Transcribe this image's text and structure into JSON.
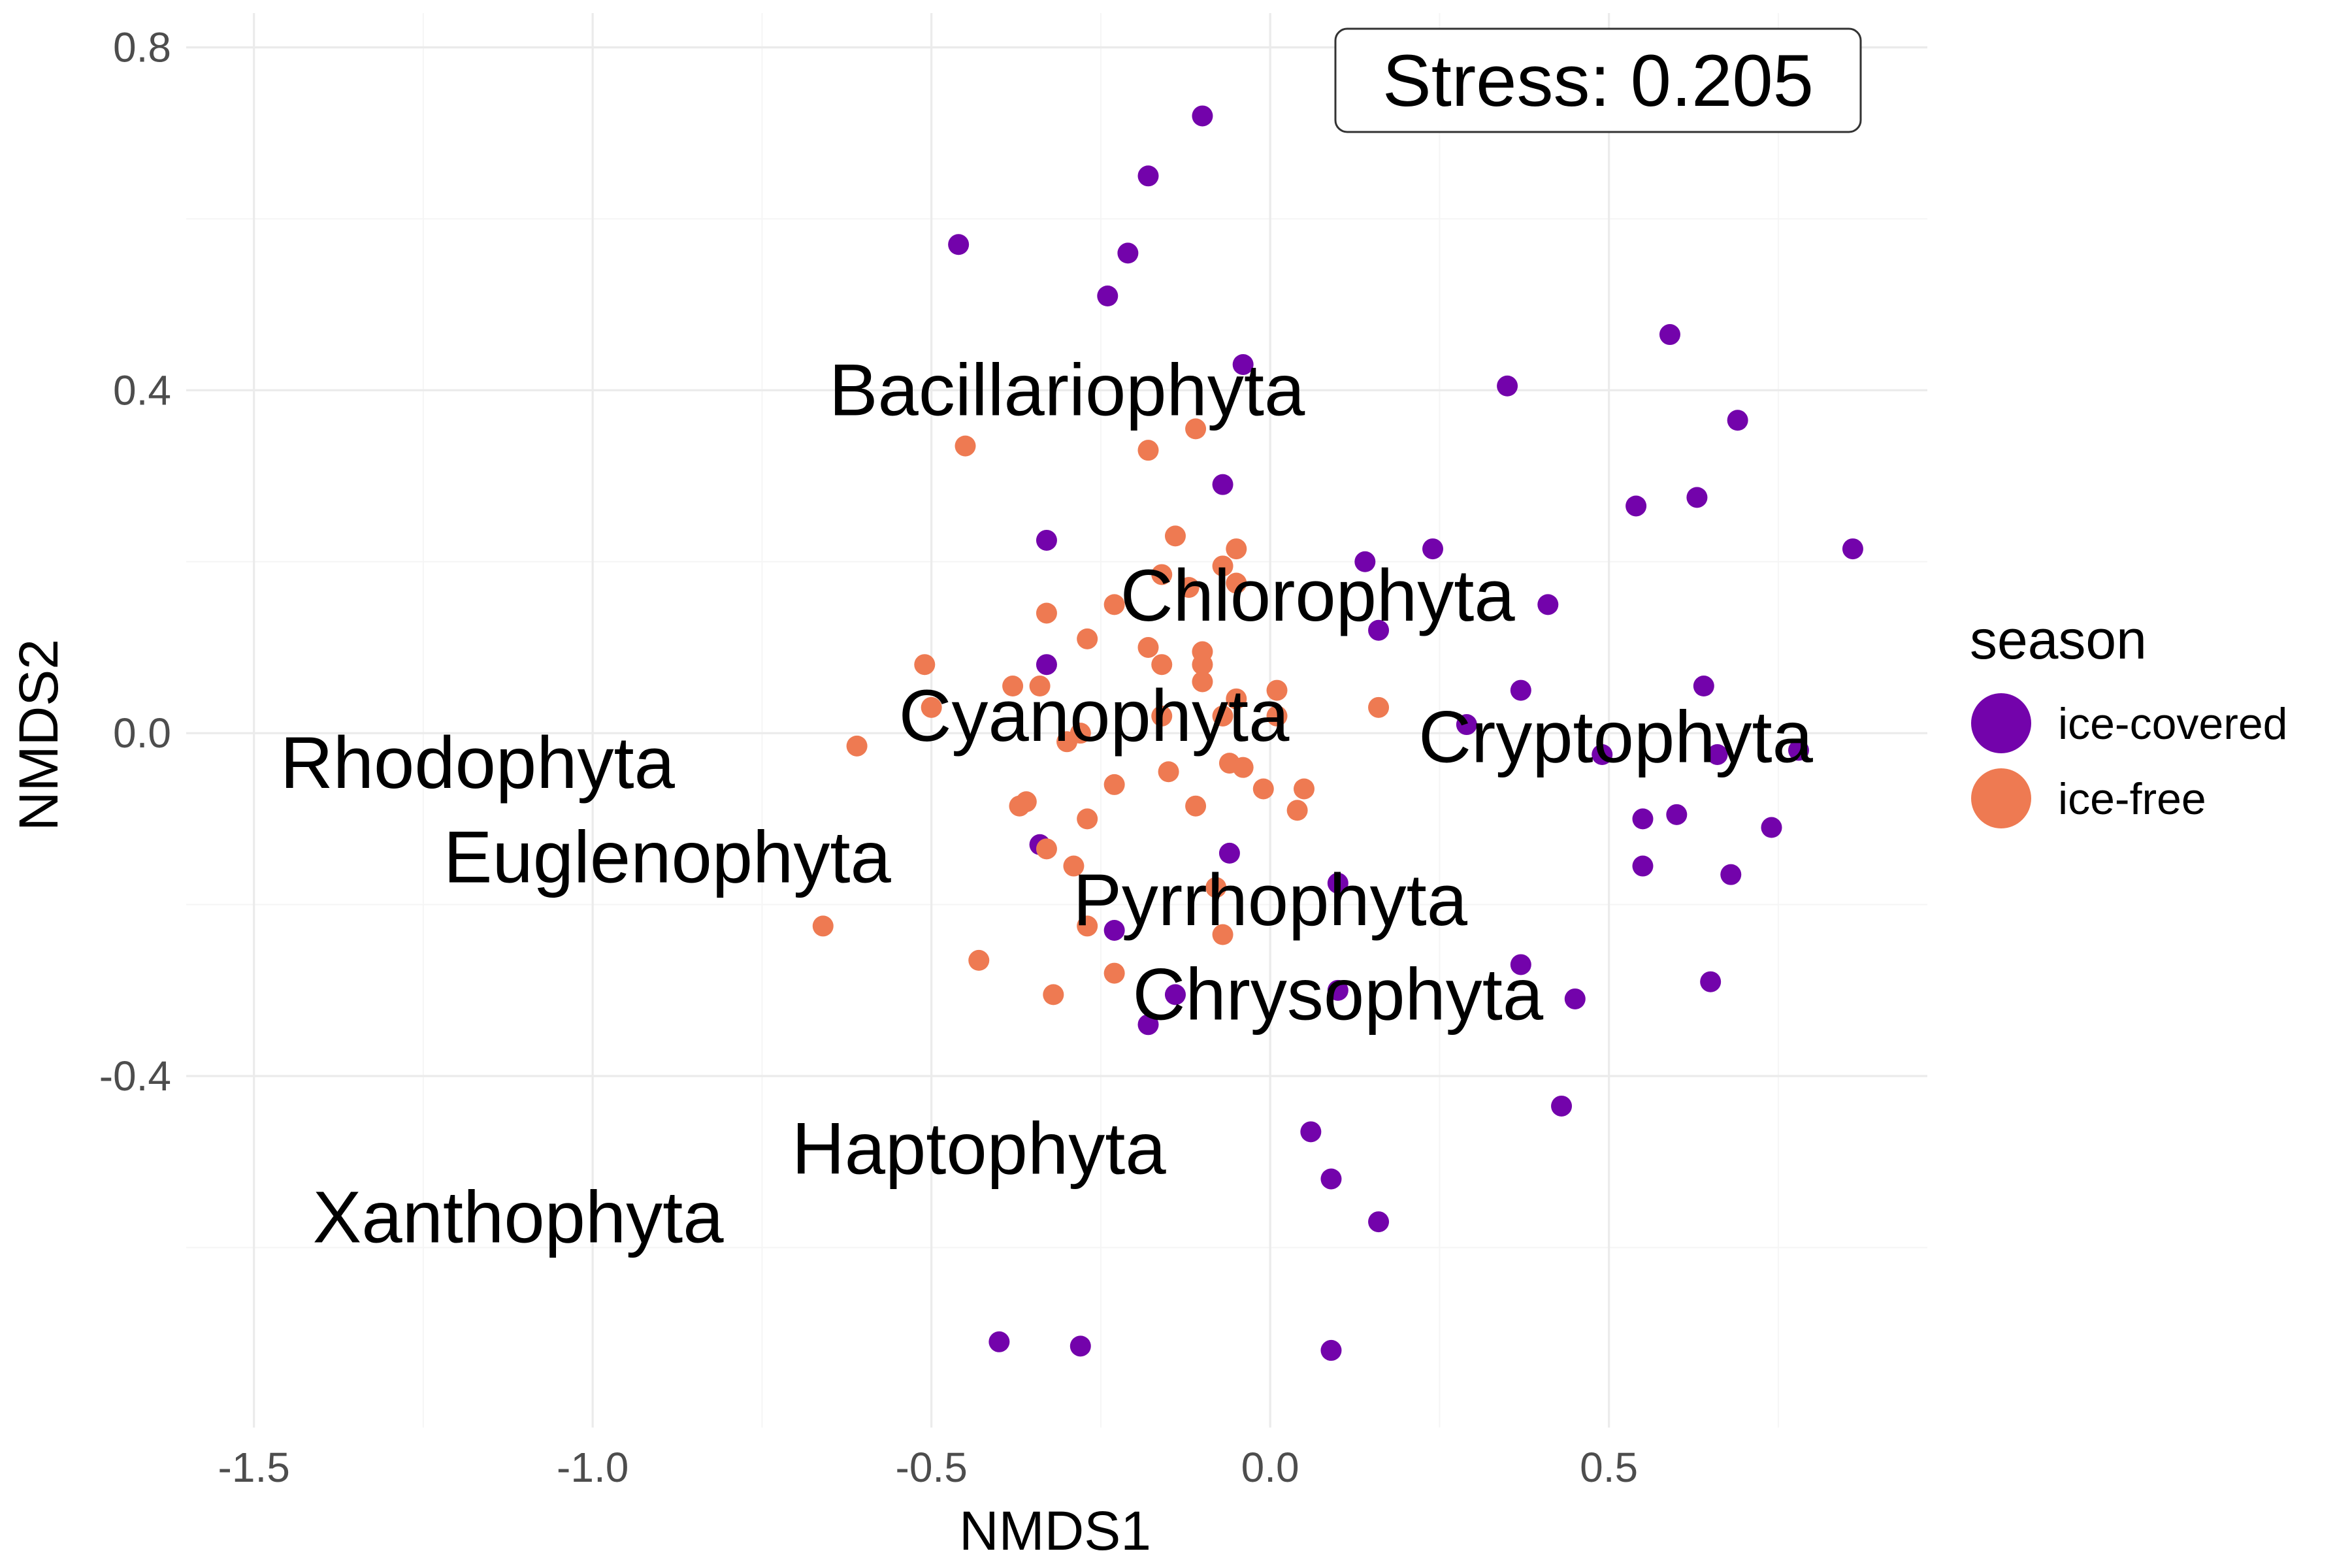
{
  "chart_data": {
    "type": "scatter",
    "xlabel": "NMDS1",
    "ylabel": "NMDS2",
    "xlim": [
      -1.6,
      0.97
    ],
    "ylim": [
      -0.81,
      0.84
    ],
    "x_ticks": [
      {
        "value": -1.5,
        "label": "-1.5"
      },
      {
        "value": -1.0,
        "label": "-1.0"
      },
      {
        "value": -0.5,
        "label": "-0.5"
      },
      {
        "value": 0.0,
        "label": "0.0"
      },
      {
        "value": 0.5,
        "label": "0.5"
      }
    ],
    "y_ticks": [
      {
        "value": 0.8,
        "label": "0.8"
      },
      {
        "value": 0.4,
        "label": "0.4"
      },
      {
        "value": 0.0,
        "label": "0.0"
      },
      {
        "value": -0.4,
        "label": "-0.4"
      }
    ],
    "grid": true,
    "stress_label": "Stress:  0.205",
    "legend": {
      "title": "season",
      "placement": "right",
      "entries": [
        {
          "label": "ice-covered",
          "color": "#7303AB"
        },
        {
          "label": "ice-free",
          "color": "#EE7A52"
        }
      ]
    },
    "series": [
      {
        "name": "ice-covered",
        "color": "#7303AB",
        "points": [
          [
            -0.1,
            0.72
          ],
          [
            -0.18,
            0.65
          ],
          [
            -0.46,
            0.57
          ],
          [
            -0.21,
            0.56
          ],
          [
            -0.24,
            0.51
          ],
          [
            -0.04,
            0.43
          ],
          [
            0.35,
            0.405
          ],
          [
            0.59,
            0.465
          ],
          [
            0.69,
            0.365
          ],
          [
            0.63,
            0.275
          ],
          [
            0.54,
            0.265
          ],
          [
            0.86,
            0.215
          ],
          [
            0.24,
            0.215
          ],
          [
            -0.07,
            0.29
          ],
          [
            -0.33,
            0.225
          ],
          [
            0.14,
            0.2
          ],
          [
            0.16,
            0.12
          ],
          [
            0.41,
            0.15
          ],
          [
            -0.33,
            0.08
          ],
          [
            0.37,
            0.05
          ],
          [
            0.29,
            0.01
          ],
          [
            0.64,
            0.055
          ],
          [
            0.49,
            -0.025
          ],
          [
            0.66,
            -0.025
          ],
          [
            0.78,
            -0.02
          ],
          [
            0.55,
            -0.1
          ],
          [
            0.6,
            -0.095
          ],
          [
            0.74,
            -0.11
          ],
          [
            0.55,
            -0.155
          ],
          [
            0.68,
            -0.165
          ],
          [
            -0.34,
            -0.13
          ],
          [
            -0.06,
            -0.14
          ],
          [
            0.1,
            -0.175
          ],
          [
            0.37,
            -0.27
          ],
          [
            -0.23,
            -0.23
          ],
          [
            -0.14,
            -0.305
          ],
          [
            0.1,
            -0.3
          ],
          [
            0.45,
            -0.31
          ],
          [
            0.65,
            -0.29
          ],
          [
            -0.18,
            -0.34
          ],
          [
            0.43,
            -0.435
          ],
          [
            0.06,
            -0.465
          ],
          [
            0.09,
            -0.52
          ],
          [
            0.16,
            -0.57
          ],
          [
            -0.4,
            -0.71
          ],
          [
            -0.28,
            -0.715
          ],
          [
            0.09,
            -0.72
          ]
        ]
      },
      {
        "name": "ice-free",
        "color": "#EE7A52",
        "points": [
          [
            -0.45,
            0.335
          ],
          [
            -0.18,
            0.33
          ],
          [
            -0.11,
            0.355
          ],
          [
            -0.14,
            0.23
          ],
          [
            -0.05,
            0.215
          ],
          [
            -0.07,
            0.195
          ],
          [
            -0.16,
            0.185
          ],
          [
            -0.12,
            0.17
          ],
          [
            -0.05,
            0.175
          ],
          [
            -0.33,
            0.14
          ],
          [
            -0.23,
            0.15
          ],
          [
            -0.27,
            0.11
          ],
          [
            -0.18,
            0.1
          ],
          [
            -0.1,
            0.095
          ],
          [
            -0.1,
            0.08
          ],
          [
            -0.51,
            0.08
          ],
          [
            -0.16,
            0.08
          ],
          [
            -0.38,
            0.055
          ],
          [
            -0.34,
            0.055
          ],
          [
            -0.1,
            0.06
          ],
          [
            0.01,
            0.05
          ],
          [
            0.16,
            0.03
          ],
          [
            -0.5,
            0.03
          ],
          [
            -0.05,
            0.04
          ],
          [
            -0.16,
            0.02
          ],
          [
            -0.07,
            0.02
          ],
          [
            0.01,
            0.02
          ],
          [
            -0.28,
            0.0
          ],
          [
            -0.3,
            -0.01
          ],
          [
            -0.61,
            -0.015
          ],
          [
            -0.06,
            -0.035
          ],
          [
            -0.04,
            -0.04
          ],
          [
            -0.15,
            -0.045
          ],
          [
            -0.23,
            -0.06
          ],
          [
            0.05,
            -0.065
          ],
          [
            -0.01,
            -0.065
          ],
          [
            -0.36,
            -0.08
          ],
          [
            -0.37,
            -0.085
          ],
          [
            -0.11,
            -0.085
          ],
          [
            0.04,
            -0.09
          ],
          [
            -0.27,
            -0.1
          ],
          [
            -0.33,
            -0.135
          ],
          [
            -0.29,
            -0.155
          ],
          [
            -0.08,
            -0.18
          ],
          [
            -0.66,
            -0.225
          ],
          [
            -0.27,
            -0.225
          ],
          [
            -0.07,
            -0.235
          ],
          [
            -0.43,
            -0.265
          ],
          [
            -0.23,
            -0.28
          ],
          [
            -0.32,
            -0.305
          ]
        ]
      }
    ],
    "labels": [
      {
        "text": "Bacillariophyta",
        "x": -0.3,
        "y": 0.4
      },
      {
        "text": "Chlorophyta",
        "x": 0.07,
        "y": 0.16
      },
      {
        "text": "Cyanophyta",
        "x": -0.26,
        "y": 0.02
      },
      {
        "text": "Cryptophyta",
        "x": 0.51,
        "y": -0.005
      },
      {
        "text": "Rhodophyta",
        "x": -1.17,
        "y": -0.035
      },
      {
        "text": "Euglenophyta",
        "x": -0.89,
        "y": -0.145
      },
      {
        "text": "Pyrrhophyta",
        "x": 0.0,
        "y": -0.195
      },
      {
        "text": "Chrysophyta",
        "x": 0.1,
        "y": -0.305
      },
      {
        "text": "Haptophyta",
        "x": -0.43,
        "y": -0.485
      },
      {
        "text": "Xanthophyta",
        "x": -1.11,
        "y": -0.565
      }
    ]
  }
}
